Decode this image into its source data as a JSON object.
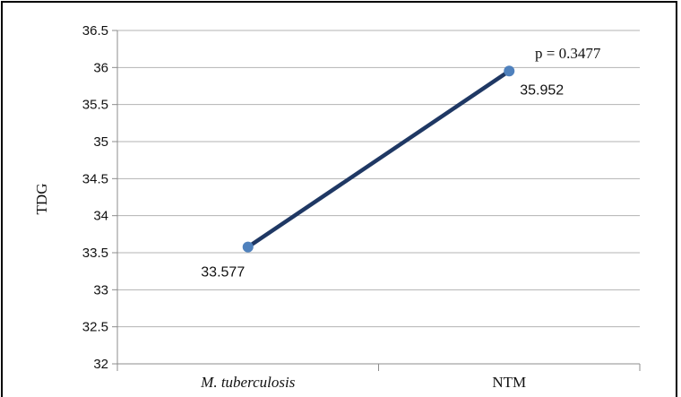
{
  "chart_data": {
    "type": "line",
    "title": "",
    "xlabel": "",
    "ylabel": "TDG",
    "ylim": [
      32,
      36.5
    ],
    "yticks": [
      32,
      32.5,
      33,
      33.5,
      34,
      34.5,
      35,
      35.5,
      36,
      36.5
    ],
    "ytick_labels": [
      "32",
      "32.5",
      "33",
      "33.5",
      "34",
      "34.5",
      "35",
      "35.5",
      "36",
      "36.5"
    ],
    "categories": [
      "M. tuberculosis",
      "NTM"
    ],
    "category_italic": [
      true,
      false
    ],
    "series": [
      {
        "values": [
          33.577,
          35.952
        ],
        "data_labels": [
          "33.577",
          "35.952"
        ]
      }
    ],
    "annotation": "p = 0.3477",
    "grid": true,
    "legend": "none",
    "colors": {
      "line": "#1f3864",
      "marker": "#4f81bd",
      "grid": "#b3b3b3",
      "axis": "#8c8c8c"
    }
  }
}
